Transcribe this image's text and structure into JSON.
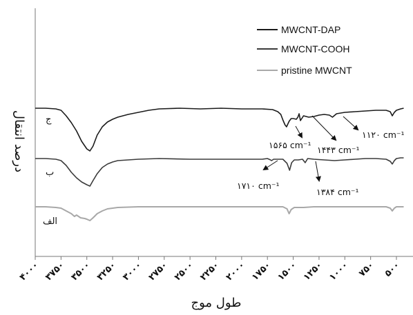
{
  "chart_data": {
    "type": "line",
    "title": "",
    "xlabel": "طول موج",
    "ylabel": "درصد انتقال",
    "xlim": [
      4000,
      400
    ],
    "x_reversed": true,
    "grid": false,
    "legend_position": "top-right",
    "xticks": [
      4000,
      3750,
      3500,
      3250,
      3000,
      2750,
      2500,
      2250,
      2000,
      1750,
      1500,
      1250,
      1000,
      750,
      500
    ],
    "xtick_labels": [
      "۴۰۰۰",
      "۳۷۵۰",
      "۳۵۰۰",
      "۳۲۵۰",
      "۳۰۰۰",
      "۲۷۵۰",
      "۲۵۰۰",
      "۲۲۵۰",
      "۲۰۰۰",
      "۱۷۵۰",
      "۱۵۰۰",
      "۱۲۵۰",
      "۱۰۰۰",
      "۷۵۰",
      "۵۰۰"
    ],
    "legend": [
      {
        "name": "MWCNT-DAP",
        "color": "#1a1a1a"
      },
      {
        "name": "MWCNT-COOH",
        "color": "#3a3a3a"
      },
      {
        "name": "pristine MWCNT",
        "color": "#a8a8a8"
      }
    ],
    "series": [
      {
        "name": "MWCNT-DAP",
        "curve_label": "ج",
        "color": "#1a1a1a",
        "points": [
          [
            4000,
            157
          ],
          [
            3900,
            157
          ],
          [
            3800,
            158
          ],
          [
            3750,
            160
          ],
          [
            3700,
            168
          ],
          [
            3650,
            178
          ],
          [
            3600,
            190
          ],
          [
            3550,
            205
          ],
          [
            3500,
            216
          ],
          [
            3470,
            219
          ],
          [
            3440,
            212
          ],
          [
            3400,
            196
          ],
          [
            3350,
            184
          ],
          [
            3300,
            177
          ],
          [
            3250,
            173
          ],
          [
            3200,
            170
          ],
          [
            3100,
            166
          ],
          [
            3000,
            163
          ],
          [
            2900,
            160
          ],
          [
            2800,
            158
          ],
          [
            2600,
            157
          ],
          [
            2400,
            158
          ],
          [
            2200,
            157
          ],
          [
            2000,
            158
          ],
          [
            1800,
            158
          ],
          [
            1700,
            159
          ],
          [
            1650,
            162
          ],
          [
            1620,
            166
          ],
          [
            1600,
            174
          ],
          [
            1580,
            181
          ],
          [
            1565,
            184
          ],
          [
            1540,
            176
          ],
          [
            1520,
            172
          ],
          [
            1500,
            172
          ],
          [
            1470,
            173
          ],
          [
            1455,
            170
          ],
          [
            1443,
            165
          ],
          [
            1430,
            175
          ],
          [
            1400,
            168
          ],
          [
            1350,
            170
          ],
          [
            1300,
            169
          ],
          [
            1250,
            167
          ],
          [
            1200,
            166
          ],
          [
            1150,
            167
          ],
          [
            1120,
            170
          ],
          [
            1080,
            165
          ],
          [
            1000,
            163
          ],
          [
            900,
            162
          ],
          [
            800,
            161
          ],
          [
            700,
            160
          ],
          [
            600,
            160
          ],
          [
            560,
            162
          ],
          [
            540,
            168
          ],
          [
            520,
            163
          ],
          [
            500,
            160
          ],
          [
            460,
            158
          ],
          [
            430,
            157
          ]
        ]
      },
      {
        "name": "MWCNT-COOH",
        "curve_label": "ب",
        "color": "#3a3a3a",
        "points": [
          [
            4000,
            230
          ],
          [
            3900,
            230
          ],
          [
            3800,
            231
          ],
          [
            3750,
            233
          ],
          [
            3700,
            240
          ],
          [
            3650,
            250
          ],
          [
            3600,
            258
          ],
          [
            3550,
            264
          ],
          [
            3500,
            268
          ],
          [
            3470,
            270
          ],
          [
            3440,
            262
          ],
          [
            3400,
            252
          ],
          [
            3350,
            243
          ],
          [
            3300,
            238
          ],
          [
            3250,
            235
          ],
          [
            3200,
            233
          ],
          [
            3100,
            232
          ],
          [
            3000,
            231
          ],
          [
            2800,
            230
          ],
          [
            2500,
            231
          ],
          [
            2200,
            231
          ],
          [
            2000,
            231
          ],
          [
            1800,
            231
          ],
          [
            1750,
            230
          ],
          [
            1720,
            232
          ],
          [
            1710,
            233
          ],
          [
            1690,
            231
          ],
          [
            1600,
            231
          ],
          [
            1560,
            237
          ],
          [
            1535,
            247
          ],
          [
            1515,
            236
          ],
          [
            1490,
            232
          ],
          [
            1450,
            232
          ],
          [
            1410,
            231
          ],
          [
            1384,
            236
          ],
          [
            1360,
            230
          ],
          [
            1300,
            231
          ],
          [
            1200,
            232
          ],
          [
            1100,
            233
          ],
          [
            1000,
            232
          ],
          [
            900,
            231
          ],
          [
            800,
            230
          ],
          [
            700,
            230
          ],
          [
            600,
            231
          ],
          [
            560,
            234
          ],
          [
            540,
            238
          ],
          [
            520,
            233
          ],
          [
            500,
            230
          ],
          [
            460,
            229
          ],
          [
            430,
            229
          ]
        ]
      },
      {
        "name": "pristine MWCNT",
        "curve_label": "الف",
        "color": "#a8a8a8",
        "points": [
          [
            4000,
            300
          ],
          [
            3900,
            300
          ],
          [
            3800,
            301
          ],
          [
            3750,
            302
          ],
          [
            3700,
            306
          ],
          [
            3650,
            310
          ],
          [
            3620,
            314
          ],
          [
            3600,
            312
          ],
          [
            3560,
            316
          ],
          [
            3520,
            317
          ],
          [
            3500,
            318
          ],
          [
            3470,
            320
          ],
          [
            3440,
            316
          ],
          [
            3400,
            310
          ],
          [
            3350,
            306
          ],
          [
            3300,
            303
          ],
          [
            3250,
            302
          ],
          [
            3200,
            301
          ],
          [
            3000,
            300
          ],
          [
            2700,
            300
          ],
          [
            2400,
            300
          ],
          [
            2100,
            300
          ],
          [
            1900,
            300
          ],
          [
            1700,
            300
          ],
          [
            1600,
            300
          ],
          [
            1560,
            303
          ],
          [
            1540,
            310
          ],
          [
            1520,
            304
          ],
          [
            1490,
            301
          ],
          [
            1400,
            301
          ],
          [
            1300,
            300
          ],
          [
            1200,
            300
          ],
          [
            1100,
            300
          ],
          [
            1000,
            300
          ],
          [
            900,
            300
          ],
          [
            800,
            300
          ],
          [
            700,
            300
          ],
          [
            600,
            300
          ],
          [
            560,
            302
          ],
          [
            540,
            306
          ],
          [
            520,
            302
          ],
          [
            500,
            300
          ],
          [
            430,
            300
          ]
        ]
      }
    ],
    "annotations": [
      {
        "text": "۱۵۶۵ cm⁻¹",
        "points_to": 1565
      },
      {
        "text": "۱۴۴۳ cm⁻¹",
        "points_to": 1443
      },
      {
        "text": "۱۱۲۰ cm⁻¹",
        "points_to": 1120
      },
      {
        "text": "۱۷۱۰ cm⁻¹",
        "points_to": 1710
      },
      {
        "text": "۱۳۸۴ cm⁻¹",
        "points_to": 1384
      }
    ]
  }
}
